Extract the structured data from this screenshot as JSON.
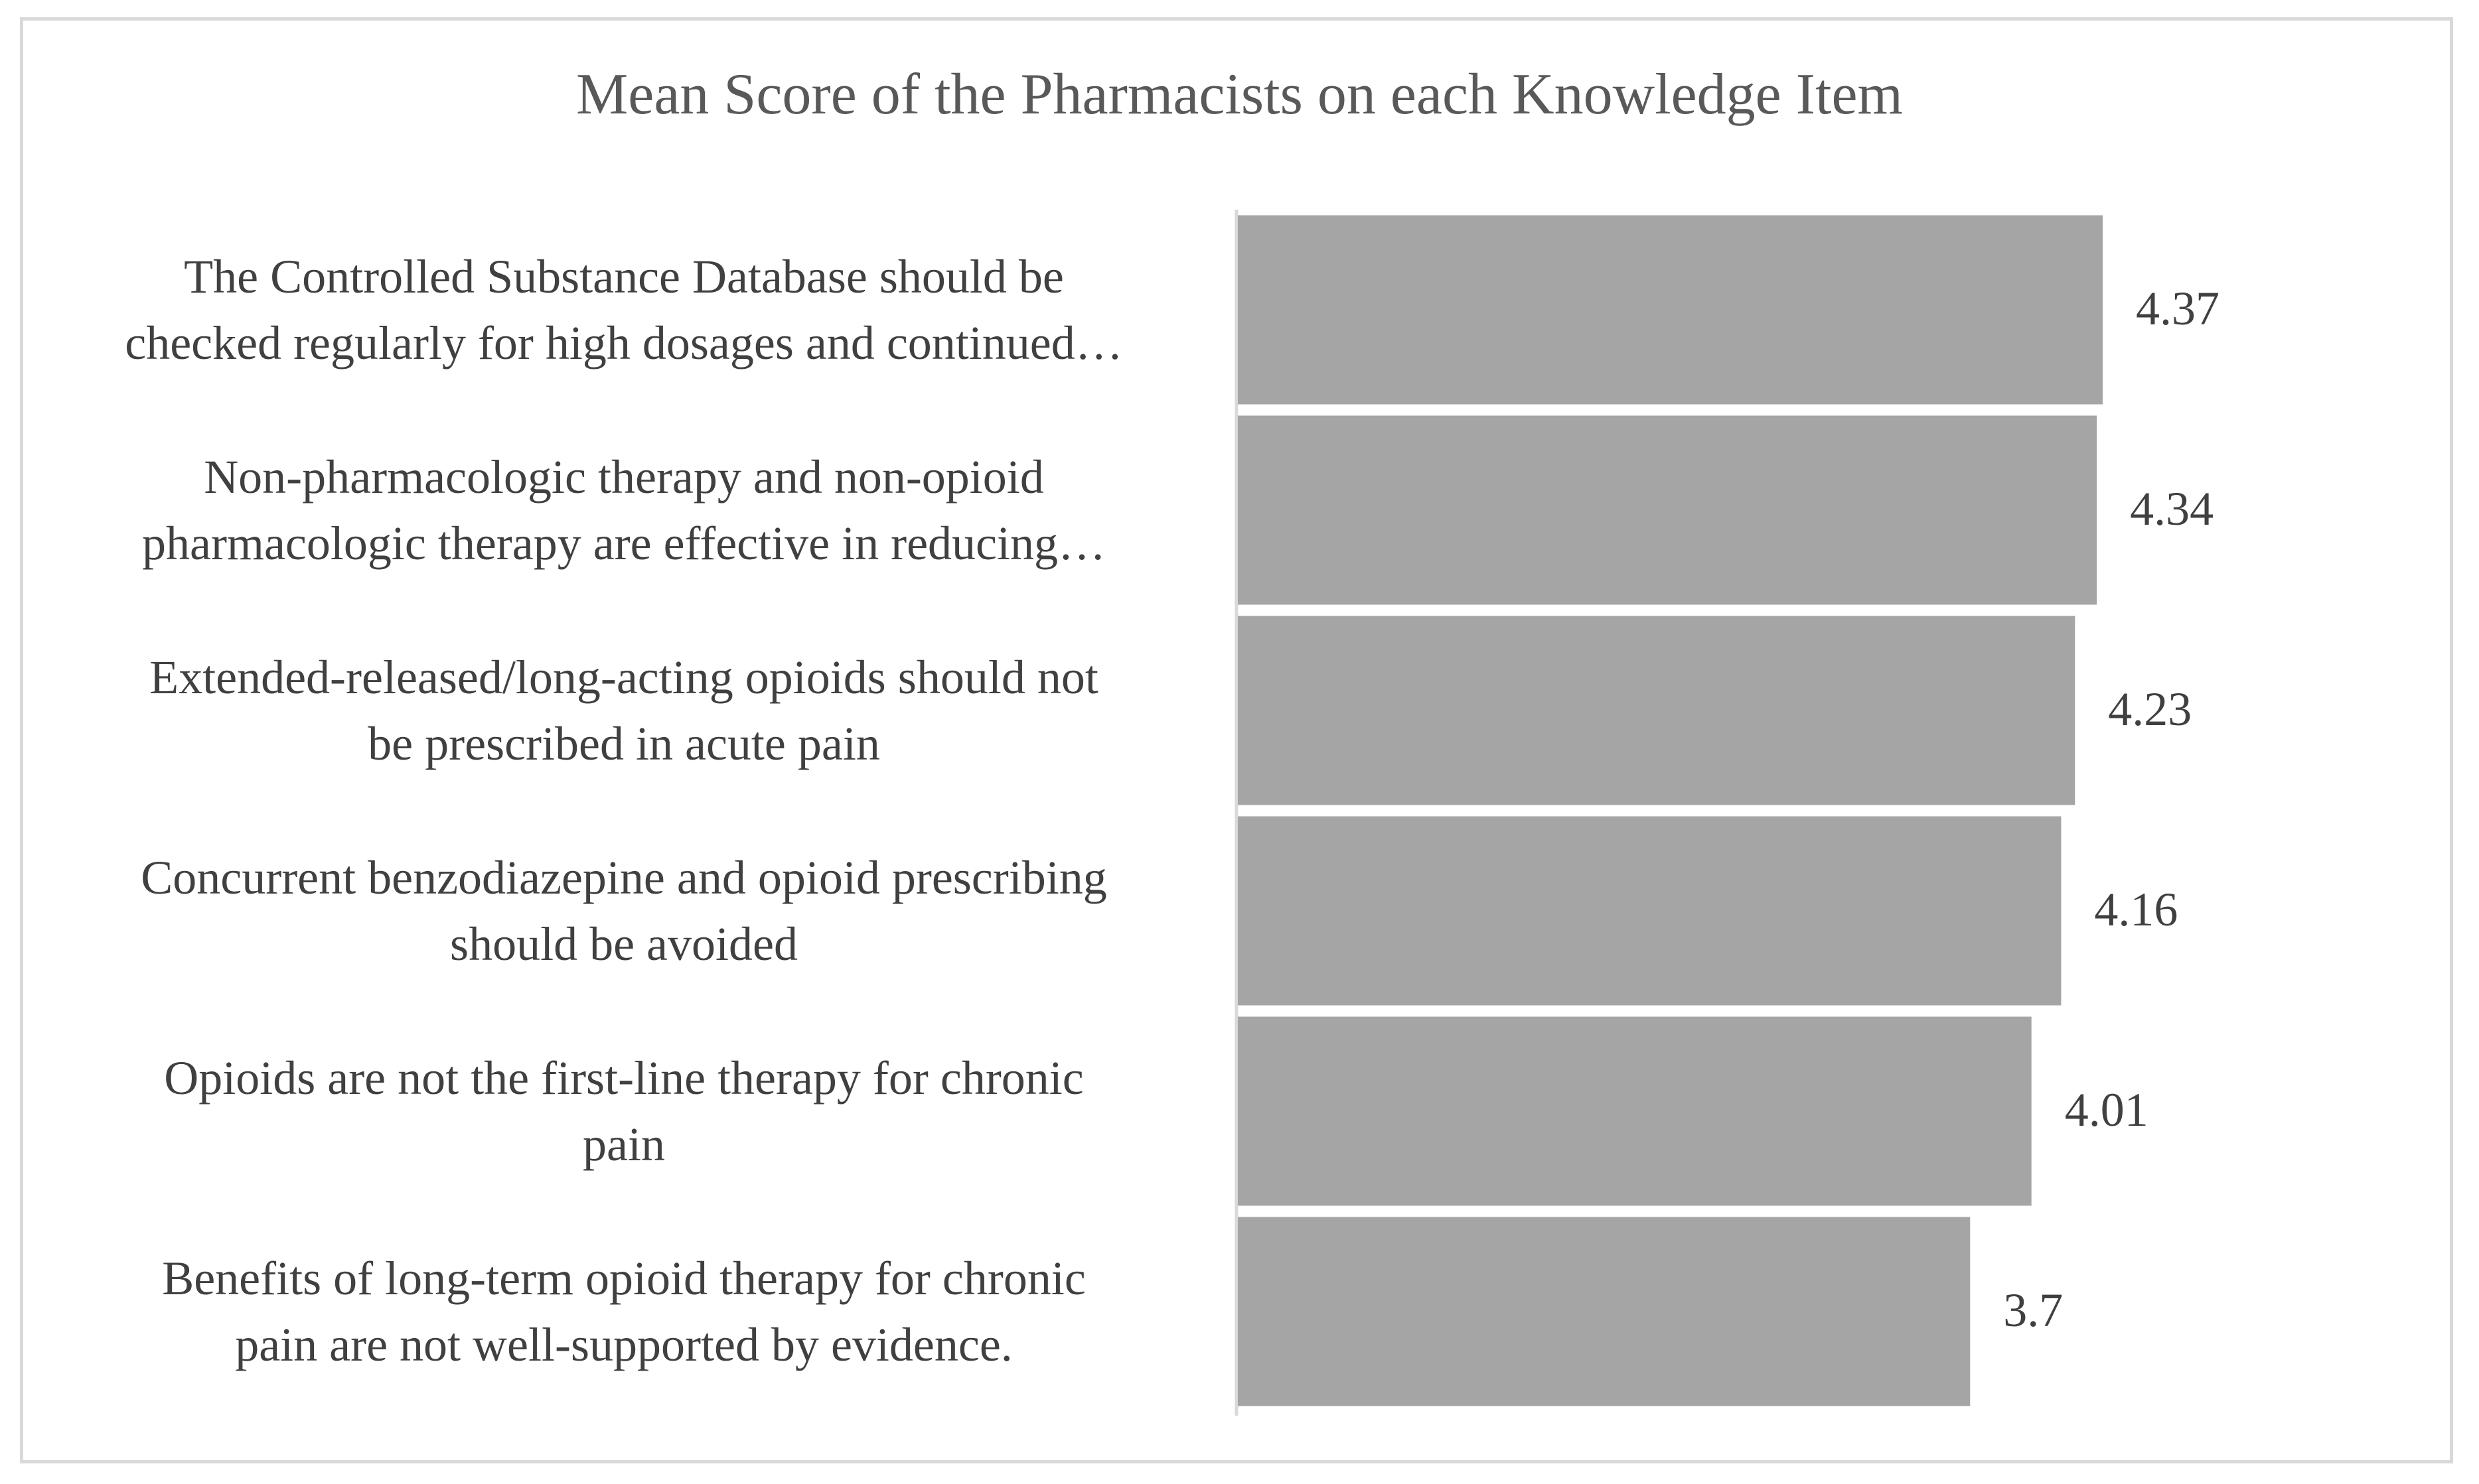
{
  "chart_data": {
    "type": "bar",
    "orientation": "horizontal",
    "title": "Mean Score of the Pharmacists on each Knowledge Item",
    "xlabel": "",
    "ylabel": "",
    "xlim": [
      0,
      4.95
    ],
    "grid": false,
    "legend": "none",
    "bar_color": "#a5a5a5",
    "categories": [
      {
        "lines": [
          "The Controlled Substance Database should be",
          "checked regularly for high dosages and continued…"
        ],
        "value": 4.37,
        "value_label": "4.37"
      },
      {
        "lines": [
          "Non-pharmacologic therapy and non-opioid",
          "pharmacologic therapy are effective in reducing…"
        ],
        "value": 4.34,
        "value_label": "4.34"
      },
      {
        "lines": [
          "Extended-released/long-acting opioids should not",
          "be prescribed in acute pain"
        ],
        "value": 4.23,
        "value_label": "4.23"
      },
      {
        "lines": [
          "Concurrent benzodiazepine and opioid prescribing",
          "should be avoided"
        ],
        "value": 4.16,
        "value_label": "4.16"
      },
      {
        "lines": [
          "Opioids are not the first-line therapy for chronic",
          "pain"
        ],
        "value": 4.01,
        "value_label": "4.01"
      },
      {
        "lines": [
          "Benefits of long-term opioid therapy for chronic",
          "pain are not well-supported by evidence."
        ],
        "value": 3.7,
        "value_label": "3.7"
      }
    ]
  }
}
